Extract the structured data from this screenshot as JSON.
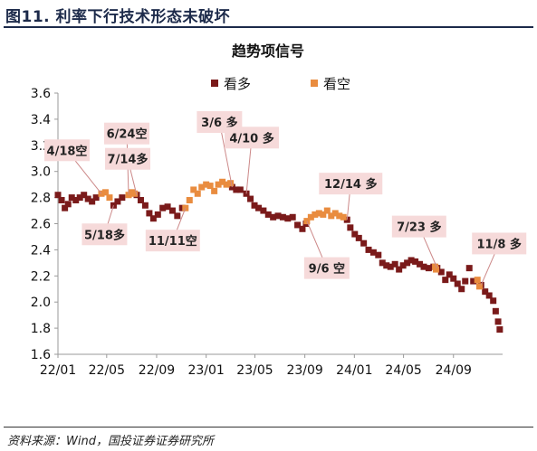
{
  "page": {
    "title": "图11. 利率下行技术形态未破坏",
    "source": "资料来源：Wind，国投证券证券研究所"
  },
  "colors": {
    "bearish": "#7a1a1a",
    "bullish": "#e98c3f",
    "annotation_fill": "#f6dada",
    "annotation_text": "#222222",
    "axis": "#9a9a9a",
    "title_text": "#1c2a4a"
  },
  "chart_data": {
    "type": "scatter",
    "title": "趋势项信号",
    "xlabel": "",
    "ylabel": "",
    "ylim": [
      1.6,
      3.6
    ],
    "y_ticks": [
      1.6,
      1.8,
      2.0,
      2.2,
      2.4,
      2.6,
      2.8,
      3.0,
      3.2,
      3.4,
      3.6
    ],
    "y_tick_labels": [
      "1.6",
      "1.8",
      "2.0",
      "2.2",
      "2.4",
      "2.6",
      "2.8",
      "3.0",
      "3.2",
      "3.4",
      "3.6"
    ],
    "x_ticks": [
      "2022-01",
      "2022-05",
      "2022-09",
      "2023-01",
      "2023-05",
      "2023-09",
      "2024-01",
      "2024-05",
      "2024-09"
    ],
    "x_tick_labels": [
      "22/01",
      "22/05",
      "22/09",
      "23/01",
      "23/05",
      "23/09",
      "24/01",
      "24/05",
      "24/09"
    ],
    "xlim": [
      "2022-01-01",
      "2024-12-31"
    ],
    "grid": false,
    "legend_position": "top-center",
    "legend": [
      {
        "name": "看多",
        "color": "#7a1a1a"
      },
      {
        "name": "看空",
        "color": "#e98c3f"
      }
    ],
    "series": [
      {
        "name": "看多",
        "color": "#7a1a1a",
        "points": [
          [
            "2022-01-01",
            2.82
          ],
          [
            "2022-01-10",
            2.78
          ],
          [
            "2022-01-18",
            2.72
          ],
          [
            "2022-01-26",
            2.75
          ],
          [
            "2022-02-04",
            2.8
          ],
          [
            "2022-02-14",
            2.78
          ],
          [
            "2022-02-24",
            2.8
          ],
          [
            "2022-03-06",
            2.82
          ],
          [
            "2022-03-16",
            2.79
          ],
          [
            "2022-03-26",
            2.77
          ],
          [
            "2022-04-05",
            2.8
          ],
          [
            "2022-05-18",
            2.74
          ],
          [
            "2022-05-28",
            2.77
          ],
          [
            "2022-06-08",
            2.8
          ],
          [
            "2022-07-14",
            2.82
          ],
          [
            "2022-07-24",
            2.78
          ],
          [
            "2022-08-04",
            2.74
          ],
          [
            "2022-08-14",
            2.68
          ],
          [
            "2022-08-24",
            2.64
          ],
          [
            "2022-09-04",
            2.67
          ],
          [
            "2022-09-16",
            2.72
          ],
          [
            "2022-09-28",
            2.73
          ],
          [
            "2022-10-10",
            2.7
          ],
          [
            "2022-10-22",
            2.66
          ],
          [
            "2022-11-03",
            2.72
          ],
          [
            "2023-03-06",
            2.88
          ],
          [
            "2023-03-16",
            2.86
          ],
          [
            "2023-03-26",
            2.86
          ],
          [
            "2023-04-10",
            2.83
          ],
          [
            "2023-04-20",
            2.79
          ],
          [
            "2023-04-30",
            2.74
          ],
          [
            "2023-05-10",
            2.72
          ],
          [
            "2023-05-22",
            2.7
          ],
          [
            "2023-06-03",
            2.67
          ],
          [
            "2023-06-15",
            2.65
          ],
          [
            "2023-06-27",
            2.66
          ],
          [
            "2023-07-09",
            2.65
          ],
          [
            "2023-07-21",
            2.64
          ],
          [
            "2023-08-02",
            2.65
          ],
          [
            "2023-08-14",
            2.59
          ],
          [
            "2023-08-26",
            2.56
          ],
          [
            "2023-09-04",
            2.6
          ],
          [
            "2023-12-14",
            2.63
          ],
          [
            "2023-12-22",
            2.57
          ],
          [
            "2024-01-02",
            2.52
          ],
          [
            "2024-01-12",
            2.49
          ],
          [
            "2024-01-24",
            2.45
          ],
          [
            "2024-02-05",
            2.4
          ],
          [
            "2024-02-17",
            2.38
          ],
          [
            "2024-02-29",
            2.36
          ],
          [
            "2024-03-10",
            2.3
          ],
          [
            "2024-03-20",
            2.28
          ],
          [
            "2024-03-30",
            2.27
          ],
          [
            "2024-04-10",
            2.29
          ],
          [
            "2024-04-20",
            2.25
          ],
          [
            "2024-04-30",
            2.28
          ],
          [
            "2024-05-10",
            2.3
          ],
          [
            "2024-05-20",
            2.32
          ],
          [
            "2024-05-30",
            2.31
          ],
          [
            "2024-06-10",
            2.29
          ],
          [
            "2024-06-20",
            2.27
          ],
          [
            "2024-07-02",
            2.26
          ],
          [
            "2024-07-14",
            2.27
          ],
          [
            "2024-07-23",
            2.26
          ],
          [
            "2024-08-02",
            2.23
          ],
          [
            "2024-08-12",
            2.17
          ],
          [
            "2024-08-22",
            2.21
          ],
          [
            "2024-09-01",
            2.18
          ],
          [
            "2024-09-11",
            2.14
          ],
          [
            "2024-09-21",
            2.1
          ],
          [
            "2024-09-30",
            2.16
          ],
          [
            "2024-10-10",
            2.26
          ],
          [
            "2024-10-20",
            2.16
          ],
          [
            "2024-11-08",
            2.13
          ],
          [
            "2024-11-18",
            2.08
          ],
          [
            "2024-11-28",
            2.05
          ],
          [
            "2024-12-08",
            2.01
          ],
          [
            "2024-12-14",
            1.93
          ],
          [
            "2024-12-20",
            1.85
          ],
          [
            "2024-12-24",
            1.79
          ]
        ]
      },
      {
        "name": "看空",
        "color": "#e98c3f",
        "points": [
          [
            "2022-04-18",
            2.83
          ],
          [
            "2022-04-28",
            2.84
          ],
          [
            "2022-05-08",
            2.8
          ],
          [
            "2022-06-24",
            2.82
          ],
          [
            "2022-07-02",
            2.84
          ],
          [
            "2022-07-09",
            2.83
          ],
          [
            "2022-11-11",
            2.72
          ],
          [
            "2022-11-21",
            2.78
          ],
          [
            "2022-12-01",
            2.86
          ],
          [
            "2022-12-11",
            2.83
          ],
          [
            "2022-12-21",
            2.88
          ],
          [
            "2023-01-01",
            2.9
          ],
          [
            "2023-01-11",
            2.89
          ],
          [
            "2023-01-21",
            2.85
          ],
          [
            "2023-01-31",
            2.9
          ],
          [
            "2023-02-10",
            2.92
          ],
          [
            "2023-02-20",
            2.9
          ],
          [
            "2023-03-02",
            2.91
          ],
          [
            "2023-09-06",
            2.62
          ],
          [
            "2023-09-16",
            2.65
          ],
          [
            "2023-09-26",
            2.67
          ],
          [
            "2023-10-06",
            2.68
          ],
          [
            "2023-10-16",
            2.67
          ],
          [
            "2023-10-26",
            2.7
          ],
          [
            "2023-11-05",
            2.66
          ],
          [
            "2023-11-15",
            2.68
          ],
          [
            "2023-11-25",
            2.66
          ],
          [
            "2023-12-05",
            2.65
          ],
          [
            "2024-07-18",
            2.27
          ],
          [
            "2024-07-20",
            2.25
          ],
          [
            "2024-10-30",
            2.17
          ],
          [
            "2024-11-04",
            2.12
          ]
        ]
      }
    ],
    "annotations": [
      {
        "text": "4/18空",
        "date": "2022-04-18",
        "value": 2.83,
        "label_side": "above"
      },
      {
        "text": "5/18多",
        "date": "2022-05-18",
        "value": 2.74,
        "label_side": "below"
      },
      {
        "text": "6/24空",
        "date": "2022-06-24",
        "value": 2.82,
        "label_side": "above"
      },
      {
        "text": "7/14多",
        "date": "2022-07-14",
        "value": 2.82,
        "label_side": "above"
      },
      {
        "text": "11/11空",
        "date": "2022-11-11",
        "value": 2.72,
        "label_side": "below"
      },
      {
        "text": "3/6 多",
        "date": "2023-03-06",
        "value": 2.88,
        "label_side": "above"
      },
      {
        "text": "4/10 多",
        "date": "2023-04-10",
        "value": 2.83,
        "label_side": "above"
      },
      {
        "text": "9/6 空",
        "date": "2023-09-06",
        "value": 2.62,
        "label_side": "below"
      },
      {
        "text": "12/14 多",
        "date": "2023-12-14",
        "value": 2.63,
        "label_side": "above"
      },
      {
        "text": "7/23 多",
        "date": "2024-07-23",
        "value": 2.26,
        "label_side": "above"
      },
      {
        "text": "11/8 多",
        "date": "2024-11-08",
        "value": 2.13,
        "label_side": "above"
      }
    ]
  }
}
